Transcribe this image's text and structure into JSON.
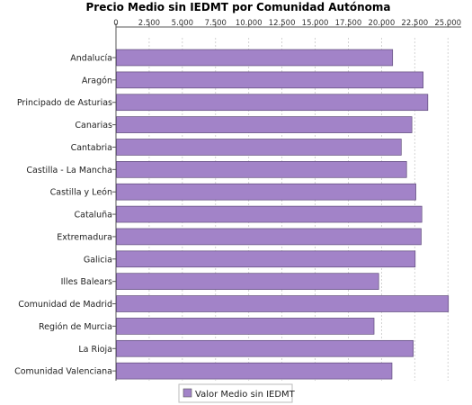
{
  "chart_data": {
    "type": "bar",
    "orientation": "horizontal",
    "title": "Precio Medio sin IEDMT por Comunidad Autónoma",
    "xlim": [
      0,
      26000
    ],
    "xticks": [
      0,
      2500,
      5000,
      7500,
      10000,
      12500,
      15000,
      17500,
      20000,
      22500,
      25000
    ],
    "xtick_labels": [
      "0",
      "2.500",
      "5.000",
      "7.500",
      "10.000",
      "12.500",
      "15.000",
      "17.500",
      "20.000",
      "22.500",
      "25.000"
    ],
    "x_axis_position": "top",
    "grid": "vertical dashed",
    "legend_position": "bottom-center",
    "categories": [
      "Andalucía",
      "Aragón",
      "Principado de Asturias",
      "Canarias",
      "Cantabria",
      "Castilla - La Mancha",
      "Castilla y León",
      "Cataluña",
      "Extremadura",
      "Galicia",
      "Illes Balears",
      "Comunidad de Madrid",
      "Región de Murcia",
      "La Rioja",
      "Comunidad Valenciana"
    ],
    "series": [
      {
        "name": "Valor Medio sin IEDMT",
        "color": "#a283c8",
        "values": [
          20800,
          23100,
          23450,
          22250,
          21450,
          21850,
          22550,
          23000,
          22950,
          22500,
          19750,
          25000,
          19400,
          22350,
          20750
        ]
      }
    ]
  }
}
